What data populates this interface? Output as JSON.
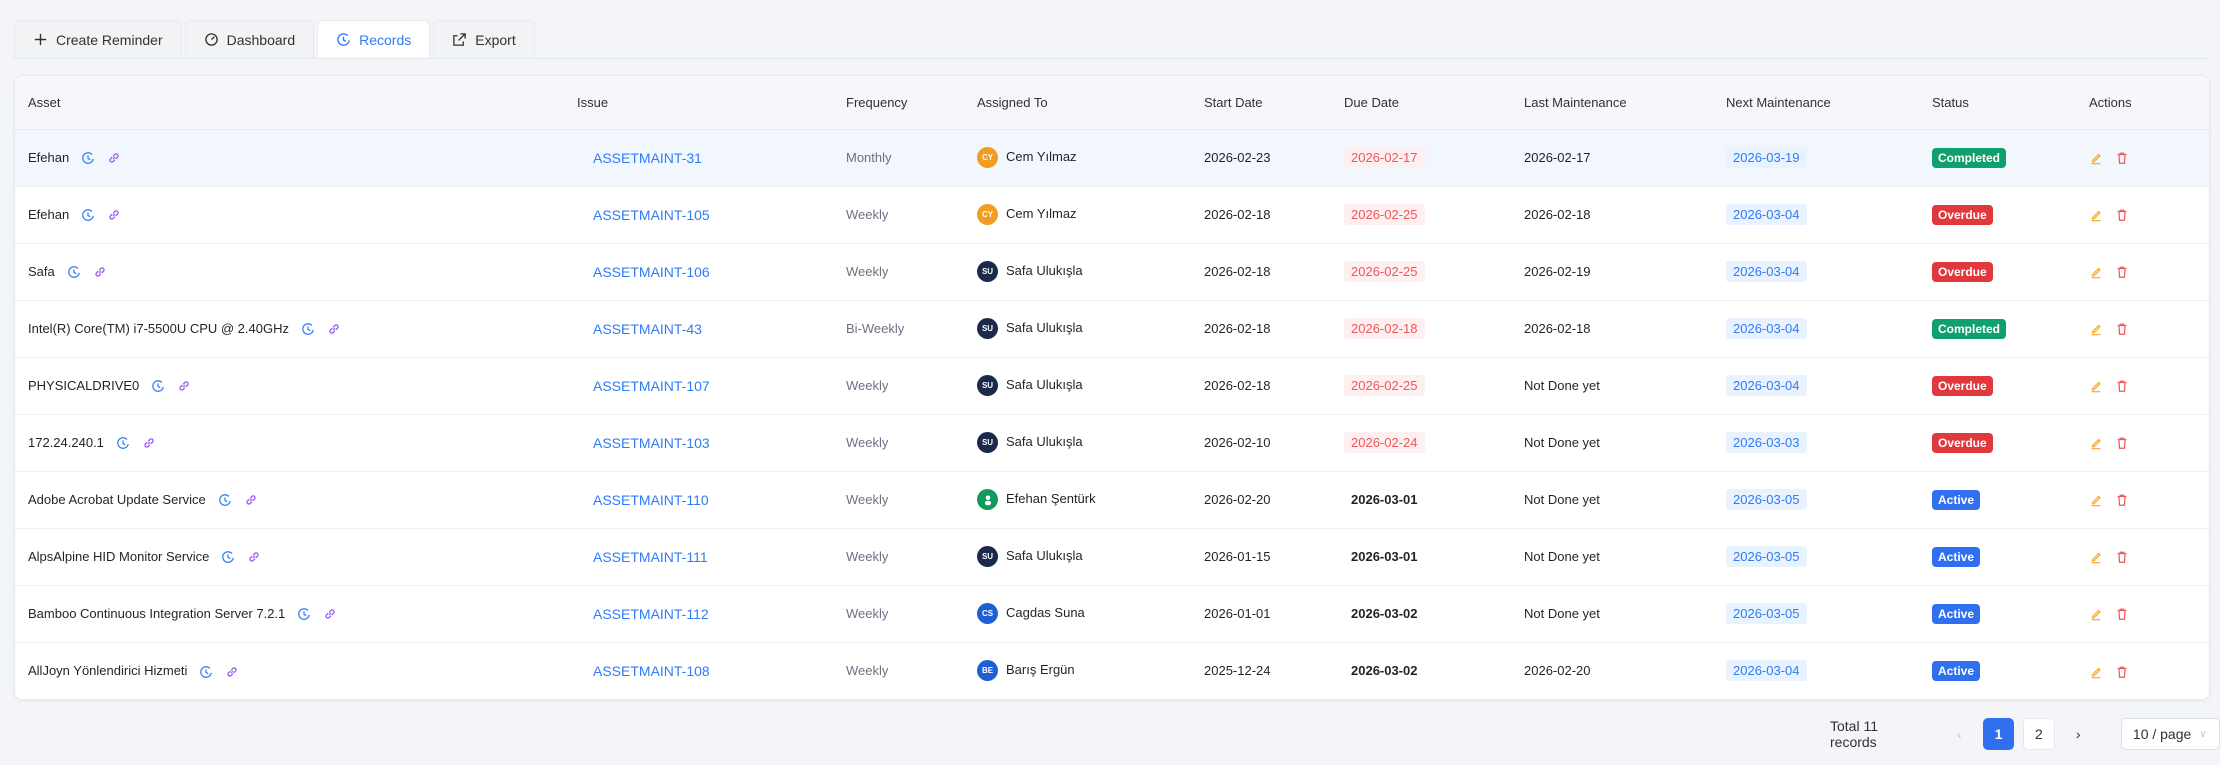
{
  "tabs": [
    {
      "label": "Create Reminder",
      "icon": "plus-icon"
    },
    {
      "label": "Dashboard",
      "icon": "gauge-icon"
    },
    {
      "label": "Records",
      "icon": "history-icon",
      "active": true
    },
    {
      "label": "Export",
      "icon": "export-icon"
    }
  ],
  "columns": [
    "Asset",
    "Issue",
    "Frequency",
    "Assigned To",
    "Start Date",
    "Due Date",
    "Last Maintenance",
    "Next Maintenance",
    "Status",
    "Actions"
  ],
  "colors": {
    "accent": "#2f7cf6",
    "completed": "#10a06e",
    "overdue": "#e0383c",
    "active": "#2f6ff0"
  },
  "rows": [
    {
      "asset": "Efehan",
      "issue": "ASSETMAINT-31",
      "frequency": "Monthly",
      "assignee": "Cem Yılmaz",
      "initials": "CY",
      "avatar": "#f39c1f",
      "start": "2026-02-23",
      "due": "2026-02-17",
      "due_overdue": true,
      "last": "2026-02-17",
      "next": "2026-03-19",
      "status": "Completed"
    },
    {
      "asset": "Efehan",
      "issue": "ASSETMAINT-105",
      "frequency": "Weekly",
      "assignee": "Cem Yılmaz",
      "initials": "CY",
      "avatar": "#f39c1f",
      "start": "2026-02-18",
      "due": "2026-02-25",
      "due_overdue": true,
      "last": "2026-02-18",
      "next": "2026-03-04",
      "status": "Overdue"
    },
    {
      "asset": "Safa",
      "issue": "ASSETMAINT-106",
      "frequency": "Weekly",
      "assignee": "Safa Ulukışla",
      "initials": "SU",
      "avatar": "#1b2a4a",
      "start": "2026-02-18",
      "due": "2026-02-25",
      "due_overdue": true,
      "last": "2026-02-19",
      "next": "2026-03-04",
      "status": "Overdue"
    },
    {
      "asset": "Intel(R) Core(TM) i7-5500U CPU @ 2.40GHz",
      "issue": "ASSETMAINT-43",
      "frequency": "Bi-Weekly",
      "assignee": "Safa Ulukışla",
      "initials": "SU",
      "avatar": "#1b2a4a",
      "start": "2026-02-18",
      "due": "2026-02-18",
      "due_overdue": true,
      "last": "2026-02-18",
      "next": "2026-03-04",
      "status": "Completed"
    },
    {
      "asset": "PHYSICALDRIVE0",
      "issue": "ASSETMAINT-107",
      "frequency": "Weekly",
      "assignee": "Safa Ulukışla",
      "initials": "SU",
      "avatar": "#1b2a4a",
      "start": "2026-02-18",
      "due": "2026-02-25",
      "due_overdue": true,
      "last": "Not Done yet",
      "next": "2026-03-04",
      "status": "Overdue"
    },
    {
      "asset": "172.24.240.1",
      "issue": "ASSETMAINT-103",
      "frequency": "Weekly",
      "assignee": "Safa Ulukışla",
      "initials": "SU",
      "avatar": "#1b2a4a",
      "start": "2026-02-10",
      "due": "2026-02-24",
      "due_overdue": true,
      "last": "Not Done yet",
      "next": "2026-03-03",
      "status": "Overdue"
    },
    {
      "asset": "Adobe Acrobat Update Service",
      "issue": "ASSETMAINT-110",
      "frequency": "Weekly",
      "assignee": "Efehan Şentürk",
      "initials": "",
      "avatar": "#0f9a5a",
      "start": "2026-02-20",
      "due": "2026-03-01",
      "due_overdue": false,
      "last": "Not Done yet",
      "next": "2026-03-05",
      "status": "Active"
    },
    {
      "asset": "AlpsAlpine HID Monitor Service",
      "issue": "ASSETMAINT-111",
      "frequency": "Weekly",
      "assignee": "Safa Ulukışla",
      "initials": "SU",
      "avatar": "#1b2a4a",
      "start": "2026-01-15",
      "due": "2026-03-01",
      "due_overdue": false,
      "last": "Not Done yet",
      "next": "2026-03-05",
      "status": "Active"
    },
    {
      "asset": "Bamboo Continuous Integration Server 7.2.1",
      "issue": "ASSETMAINT-112",
      "frequency": "Weekly",
      "assignee": "Cagdas Suna",
      "initials": "CS",
      "avatar": "#1f5fd6",
      "start": "2026-01-01",
      "due": "2026-03-02",
      "due_overdue": false,
      "last": "Not Done yet",
      "next": "2026-03-05",
      "status": "Active"
    },
    {
      "asset": "AllJoyn Yönlendirici Hizmeti",
      "issue": "ASSETMAINT-108",
      "frequency": "Weekly",
      "assignee": "Barış Ergün",
      "initials": "BE",
      "avatar": "#1f5fd6",
      "start": "2025-12-24",
      "due": "2026-03-02",
      "due_overdue": false,
      "last": "2026-02-20",
      "next": "2026-03-04",
      "status": "Active"
    }
  ],
  "pagination": {
    "total": "Total 11 records",
    "pages": [
      "1",
      "2"
    ],
    "current": "1",
    "page_size": "10 / page"
  }
}
